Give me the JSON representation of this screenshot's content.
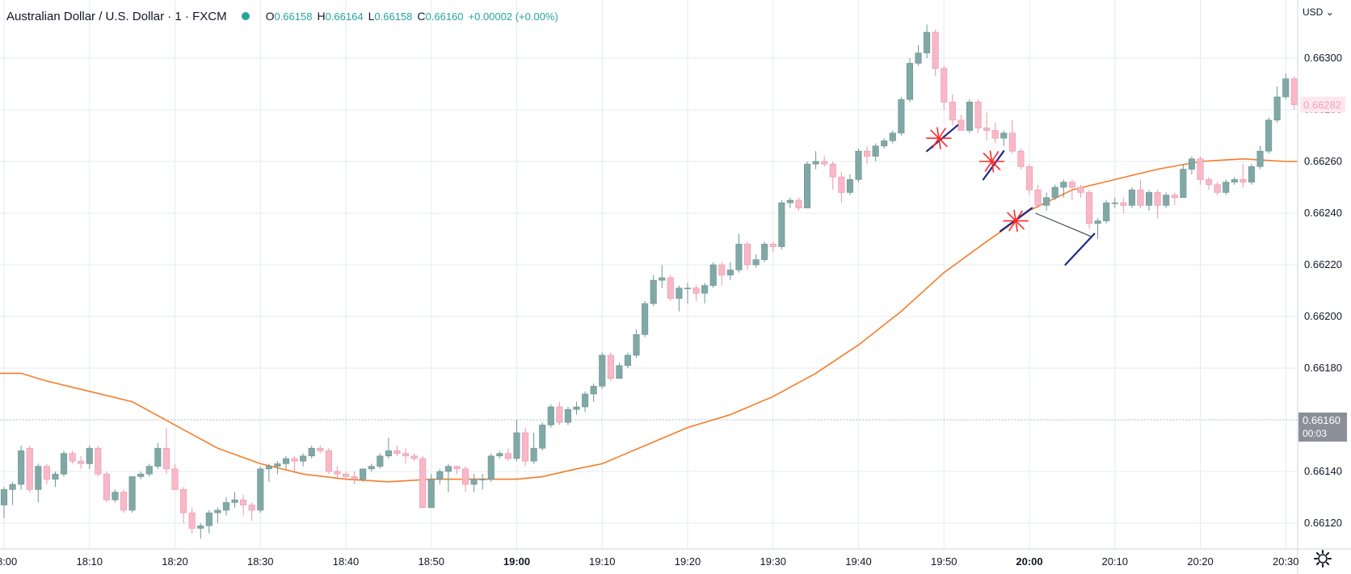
{
  "header": {
    "symbol_title": "Australian Dollar / U.S. Dollar · 1 · FXCM",
    "ohlc": [
      {
        "key": "O",
        "value": "0.66158"
      },
      {
        "key": "H",
        "value": "0.66164"
      },
      {
        "key": "L",
        "value": "0.66158"
      },
      {
        "key": "C",
        "value": "0.66160"
      }
    ],
    "change": "+0.00002 (+0.00%)",
    "status_color": "#26a69a"
  },
  "currency_menu": {
    "label": "USD"
  },
  "settings": {
    "icon": "gear-icon"
  },
  "colors": {
    "up": "#80a8a6",
    "down": "#f9b8c8",
    "wick_up": "#6d9593",
    "wick_down": "#e994ab",
    "ma": "#f57c28",
    "grid": "#e6ebf0",
    "axis_text": "#131722",
    "price_tag": "#8a8f99",
    "annotation_red": "#ff2b2b",
    "annotation_blue": "#1c2a8c"
  },
  "chart_data": {
    "type": "candlestick",
    "title": "Australian Dollar / U.S. Dollar · 1 · FXCM",
    "x_unit": "minutes after 18:00 (1-minute bars)",
    "x_ticks": [
      {
        "label": "18:00",
        "value": 0
      },
      {
        "label": "18:10",
        "value": 10
      },
      {
        "label": "18:20",
        "value": 20
      },
      {
        "label": "18:30",
        "value": 30
      },
      {
        "label": "18:40",
        "value": 40
      },
      {
        "label": "18:50",
        "value": 50
      },
      {
        "label": "19:00",
        "value": 60,
        "bold": true
      },
      {
        "label": "19:10",
        "value": 70
      },
      {
        "label": "19:20",
        "value": 80
      },
      {
        "label": "19:30",
        "value": 90
      },
      {
        "label": "19:40",
        "value": 100
      },
      {
        "label": "19:50",
        "value": 110
      },
      {
        "label": "20:00",
        "value": 120,
        "bold": true
      },
      {
        "label": "20:10",
        "value": 130
      },
      {
        "label": "20:20",
        "value": 140
      },
      {
        "label": "20:30",
        "value": 150
      }
    ],
    "y_ticks": [
      "0.66120",
      "0.66140",
      "0.66160",
      "0.66180",
      "0.66200",
      "0.66220",
      "0.66240",
      "0.66260",
      "0.66280",
      "0.66300"
    ],
    "y_range": [
      0.66114,
      0.6632
    ],
    "x_range": [
      0,
      151
    ],
    "candles": [
      [
        0.66127,
        0.66133,
        0.66122,
        0.66134
      ],
      [
        0.66133,
        0.66135,
        0.66127,
        0.66136
      ],
      [
        0.66135,
        0.66148,
        0.66133,
        0.6615
      ],
      [
        0.66149,
        0.66133,
        0.66132,
        0.6615
      ],
      [
        0.66133,
        0.66142,
        0.66128,
        0.66143
      ],
      [
        0.66142,
        0.66137,
        0.66135,
        0.66143
      ],
      [
        0.66137,
        0.66139,
        0.66134,
        0.6614
      ],
      [
        0.66139,
        0.66147,
        0.66138,
        0.66148
      ],
      [
        0.66147,
        0.66144,
        0.66143,
        0.66148
      ],
      [
        0.66144,
        0.66143,
        0.66141,
        0.66146
      ],
      [
        0.66143,
        0.66149,
        0.66141,
        0.6615
      ],
      [
        0.66149,
        0.66139,
        0.66138,
        0.6615
      ],
      [
        0.66139,
        0.66129,
        0.66128,
        0.6614
      ],
      [
        0.66129,
        0.66132,
        0.66128,
        0.66133
      ],
      [
        0.66132,
        0.66125,
        0.66124,
        0.66133
      ],
      [
        0.66125,
        0.66138,
        0.66124,
        0.66138
      ],
      [
        0.66138,
        0.66139,
        0.66137,
        0.6614
      ],
      [
        0.66139,
        0.66142,
        0.66138,
        0.66143
      ],
      [
        0.66142,
        0.66149,
        0.66141,
        0.66151
      ],
      [
        0.66149,
        0.66141,
        0.66139,
        0.66157
      ],
      [
        0.66141,
        0.66133,
        0.66133,
        0.66143
      ],
      [
        0.66133,
        0.66124,
        0.6612,
        0.66134
      ],
      [
        0.66124,
        0.66118,
        0.66116,
        0.66126
      ],
      [
        0.66118,
        0.66119,
        0.66114,
        0.6612
      ],
      [
        0.66119,
        0.66124,
        0.66116,
        0.66125
      ],
      [
        0.66124,
        0.66125,
        0.6612,
        0.66126
      ],
      [
        0.66125,
        0.66128,
        0.66123,
        0.6613
      ],
      [
        0.66128,
        0.66129,
        0.66126,
        0.66132
      ],
      [
        0.66129,
        0.66127,
        0.66123,
        0.66131
      ],
      [
        0.66127,
        0.66125,
        0.66121,
        0.66128
      ],
      [
        0.66125,
        0.66141,
        0.66124,
        0.66142
      ],
      [
        0.66141,
        0.66142,
        0.66136,
        0.66143
      ],
      [
        0.66142,
        0.66143,
        0.66139,
        0.66144
      ],
      [
        0.66143,
        0.66145,
        0.66141,
        0.66146
      ],
      [
        0.66145,
        0.66144,
        0.6614,
        0.66146
      ],
      [
        0.66144,
        0.66146,
        0.66142,
        0.66147
      ],
      [
        0.66146,
        0.66149,
        0.66145,
        0.6615
      ],
      [
        0.66149,
        0.66148,
        0.66147,
        0.6615
      ],
      [
        0.66148,
        0.6614,
        0.66139,
        0.66149
      ],
      [
        0.6614,
        0.66139,
        0.66137,
        0.66142
      ],
      [
        0.66139,
        0.66138,
        0.66137,
        0.6614
      ],
      [
        0.66138,
        0.66137,
        0.66135,
        0.6614
      ],
      [
        0.66137,
        0.66141,
        0.66136,
        0.66141
      ],
      [
        0.66141,
        0.66142,
        0.6614,
        0.66143
      ],
      [
        0.66142,
        0.66146,
        0.66141,
        0.66147
      ],
      [
        0.66146,
        0.66148,
        0.66145,
        0.66153
      ],
      [
        0.66148,
        0.66147,
        0.66146,
        0.6615
      ],
      [
        0.66147,
        0.66146,
        0.66143,
        0.66149
      ],
      [
        0.66146,
        0.66145,
        0.66144,
        0.66147
      ],
      [
        0.66145,
        0.66126,
        0.66126,
        0.66146
      ],
      [
        0.66126,
        0.66137,
        0.66126,
        0.66139
      ],
      [
        0.66137,
        0.6614,
        0.66135,
        0.66141
      ],
      [
        0.6614,
        0.66142,
        0.66132,
        0.66143
      ],
      [
        0.66142,
        0.66141,
        0.66139,
        0.66142
      ],
      [
        0.66141,
        0.66135,
        0.66132,
        0.66142
      ],
      [
        0.66135,
        0.66137,
        0.66132,
        0.66139
      ],
      [
        0.66137,
        0.66137,
        0.66133,
        0.66139
      ],
      [
        0.66137,
        0.66146,
        0.66136,
        0.66147
      ],
      [
        0.66146,
        0.66147,
        0.66145,
        0.66148
      ],
      [
        0.66147,
        0.66145,
        0.66144,
        0.66149
      ],
      [
        0.66145,
        0.66155,
        0.66144,
        0.6616
      ],
      [
        0.66155,
        0.66144,
        0.66142,
        0.66157
      ],
      [
        0.66144,
        0.66149,
        0.66143,
        0.66155
      ],
      [
        0.66149,
        0.66158,
        0.66148,
        0.66159
      ],
      [
        0.66158,
        0.66165,
        0.66157,
        0.66166
      ],
      [
        0.66165,
        0.66159,
        0.66158,
        0.66167
      ],
      [
        0.66159,
        0.66164,
        0.66158,
        0.66165
      ],
      [
        0.66164,
        0.66165,
        0.66162,
        0.66167
      ],
      [
        0.66165,
        0.6617,
        0.66163,
        0.66171
      ],
      [
        0.6617,
        0.66173,
        0.66167,
        0.66174
      ],
      [
        0.66173,
        0.66185,
        0.66172,
        0.66186
      ],
      [
        0.66185,
        0.66176,
        0.66175,
        0.66186
      ],
      [
        0.66176,
        0.66181,
        0.66176,
        0.66182
      ],
      [
        0.66181,
        0.66185,
        0.6618,
        0.66186
      ],
      [
        0.66185,
        0.66193,
        0.66184,
        0.66195
      ],
      [
        0.66193,
        0.66205,
        0.66192,
        0.66206
      ],
      [
        0.66205,
        0.66214,
        0.66204,
        0.66216
      ],
      [
        0.66214,
        0.66215,
        0.66211,
        0.6622
      ],
      [
        0.66215,
        0.66207,
        0.66206,
        0.66216
      ],
      [
        0.66207,
        0.66211,
        0.66202,
        0.66212
      ],
      [
        0.66211,
        0.66211,
        0.66205,
        0.66213
      ],
      [
        0.66211,
        0.66209,
        0.66206,
        0.66212
      ],
      [
        0.66209,
        0.66212,
        0.66205,
        0.66213
      ],
      [
        0.66212,
        0.6622,
        0.66211,
        0.66221
      ],
      [
        0.6622,
        0.66216,
        0.66212,
        0.66221
      ],
      [
        0.66216,
        0.66218,
        0.66214,
        0.66221
      ],
      [
        0.66218,
        0.66228,
        0.66217,
        0.66232
      ],
      [
        0.66228,
        0.6622,
        0.66218,
        0.66229
      ],
      [
        0.6622,
        0.66222,
        0.66219,
        0.66224
      ],
      [
        0.66222,
        0.66228,
        0.66221,
        0.66229
      ],
      [
        0.66228,
        0.66227,
        0.66225,
        0.66229
      ],
      [
        0.66227,
        0.66244,
        0.66226,
        0.66245
      ],
      [
        0.66244,
        0.66245,
        0.66242,
        0.66246
      ],
      [
        0.66245,
        0.66242,
        0.66241,
        0.66246
      ],
      [
        0.66242,
        0.66259,
        0.66242,
        0.6626
      ],
      [
        0.66259,
        0.6626,
        0.66257,
        0.66264
      ],
      [
        0.6626,
        0.66259,
        0.66258,
        0.66262
      ],
      [
        0.66259,
        0.66254,
        0.66249,
        0.6626
      ],
      [
        0.66254,
        0.66248,
        0.66244,
        0.66256
      ],
      [
        0.66248,
        0.66253,
        0.66247,
        0.66255
      ],
      [
        0.66253,
        0.66264,
        0.66252,
        0.66265
      ],
      [
        0.66264,
        0.66262,
        0.66259,
        0.66266
      ],
      [
        0.66262,
        0.66266,
        0.6626,
        0.66267
      ],
      [
        0.66266,
        0.66268,
        0.66265,
        0.66269
      ],
      [
        0.66268,
        0.66271,
        0.66267,
        0.66272
      ],
      [
        0.66271,
        0.66284,
        0.6627,
        0.66285
      ],
      [
        0.66284,
        0.66298,
        0.66283,
        0.663
      ],
      [
        0.66298,
        0.66302,
        0.66297,
        0.66305
      ],
      [
        0.66302,
        0.6631,
        0.663,
        0.66313
      ],
      [
        0.6631,
        0.66296,
        0.66293,
        0.66311
      ],
      [
        0.66296,
        0.66283,
        0.6628,
        0.66297
      ],
      [
        0.66283,
        0.66276,
        0.66274,
        0.66286
      ],
      [
        0.66276,
        0.66272,
        0.66272,
        0.66278
      ],
      [
        0.66272,
        0.66283,
        0.66271,
        0.66284
      ],
      [
        0.66283,
        0.66273,
        0.66271,
        0.66284
      ],
      [
        0.66273,
        0.66272,
        0.66268,
        0.66279
      ],
      [
        0.66272,
        0.66269,
        0.66267,
        0.66275
      ],
      [
        0.66269,
        0.66271,
        0.66266,
        0.66272
      ],
      [
        0.66271,
        0.66264,
        0.66263,
        0.66276
      ],
      [
        0.66264,
        0.66258,
        0.66257,
        0.66265
      ],
      [
        0.66258,
        0.66249,
        0.66247,
        0.66259
      ],
      [
        0.66249,
        0.66243,
        0.66242,
        0.66251
      ],
      [
        0.66243,
        0.66246,
        0.66241,
        0.66248
      ],
      [
        0.66246,
        0.6625,
        0.66245,
        0.66251
      ],
      [
        0.6625,
        0.66252,
        0.66246,
        0.66253
      ],
      [
        0.66252,
        0.6625,
        0.66245,
        0.66253
      ],
      [
        0.6625,
        0.66248,
        0.66246,
        0.66251
      ],
      [
        0.66248,
        0.66236,
        0.66234,
        0.66249
      ],
      [
        0.66236,
        0.66237,
        0.6623,
        0.66238
      ],
      [
        0.66237,
        0.66244,
        0.66236,
        0.66245
      ],
      [
        0.66244,
        0.66244,
        0.66242,
        0.66246
      ],
      [
        0.66244,
        0.66243,
        0.6624,
        0.66246
      ],
      [
        0.66243,
        0.66249,
        0.66242,
        0.6625
      ],
      [
        0.66249,
        0.66243,
        0.66242,
        0.66253
      ],
      [
        0.66243,
        0.66248,
        0.66241,
        0.66249
      ],
      [
        0.66248,
        0.66243,
        0.66238,
        0.66249
      ],
      [
        0.66243,
        0.66247,
        0.66242,
        0.66248
      ],
      [
        0.66247,
        0.66246,
        0.66243,
        0.66248
      ],
      [
        0.66246,
        0.66257,
        0.66246,
        0.66259
      ],
      [
        0.66257,
        0.66261,
        0.66255,
        0.66262
      ],
      [
        0.66261,
        0.66253,
        0.66251,
        0.66262
      ],
      [
        0.66253,
        0.66251,
        0.66249,
        0.66254
      ],
      [
        0.66251,
        0.66248,
        0.66247,
        0.66252
      ],
      [
        0.66248,
        0.66252,
        0.66247,
        0.66253
      ],
      [
        0.66252,
        0.66253,
        0.66251,
        0.66254
      ],
      [
        0.66253,
        0.66252,
        0.6625,
        0.66259
      ],
      [
        0.66252,
        0.66258,
        0.66251,
        0.66259
      ],
      [
        0.66258,
        0.66264,
        0.66257,
        0.66266
      ],
      [
        0.66264,
        0.66276,
        0.66263,
        0.66277
      ],
      [
        0.66276,
        0.66285,
        0.66275,
        0.66289
      ],
      [
        0.66285,
        0.66292,
        0.66284,
        0.66294
      ],
      [
        0.66292,
        0.66282,
        0.6628,
        0.66293
      ]
    ],
    "moving_average": {
      "x": [
        -1,
        2,
        5,
        10,
        15,
        20,
        25,
        30,
        35,
        40,
        45,
        50,
        55,
        60,
        63,
        67,
        70,
        75,
        80,
        85,
        90,
        95,
        100,
        105,
        110,
        115,
        118,
        120,
        125,
        130,
        135,
        140,
        145,
        150,
        152
      ],
      "y": [
        0.66178,
        0.66178,
        0.66175,
        0.66171,
        0.66167,
        0.66158,
        0.66149,
        0.66143,
        0.66139,
        0.66137,
        0.66136,
        0.66137,
        0.66137,
        0.66137,
        0.66138,
        0.66141,
        0.66143,
        0.6615,
        0.66157,
        0.66162,
        0.66169,
        0.66178,
        0.66189,
        0.66202,
        0.66217,
        0.66229,
        0.66236,
        0.66241,
        0.66249,
        0.66253,
        0.66257,
        0.6626,
        0.66261,
        0.6626,
        0.6626
      ]
    },
    "annotations": {
      "red_stars": [
        {
          "x": 109.4,
          "y": 0.66269
        },
        {
          "x": 115.6,
          "y": 0.6626
        },
        {
          "x": 118.4,
          "y": 0.66237
        }
      ],
      "blue_lines": [
        {
          "x1": 108.0,
          "y1": 0.66264,
          "x2": 111.6,
          "y2": 0.66274
        },
        {
          "x1": 114.6,
          "y1": 0.66253,
          "x2": 117.0,
          "y2": 0.66264
        },
        {
          "x1": 116.6,
          "y1": 0.66233,
          "x2": 120.3,
          "y2": 0.66242
        },
        {
          "x1": 124.2,
          "y1": 0.6622,
          "x2": 127.6,
          "y2": 0.66232
        }
      ],
      "thin_line": {
        "x1": 120.7,
        "y1": 0.6624,
        "x2": 127.2,
        "y2": 0.66231
      }
    },
    "last_price_line": 0.6616,
    "price_labels": {
      "current": {
        "value": "0.66160",
        "countdown": "00:03"
      },
      "recent": {
        "value": "0.66282"
      }
    },
    "grid": true
  }
}
